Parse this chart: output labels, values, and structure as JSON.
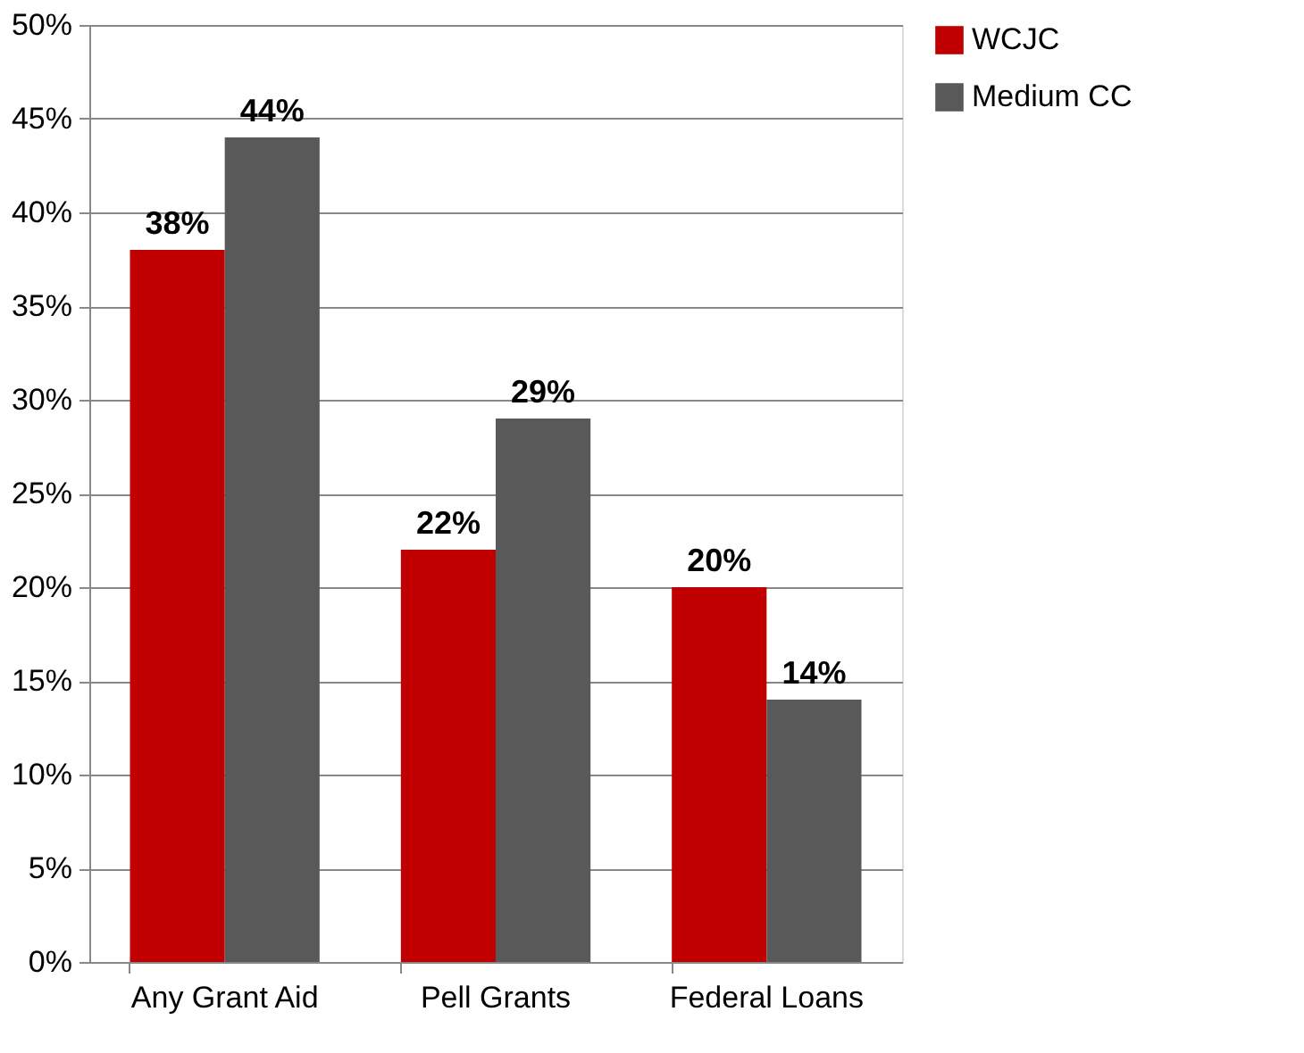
{
  "chart_data": {
    "type": "bar",
    "categories": [
      "Any Grant Aid",
      "Pell Grants",
      "Federal Loans"
    ],
    "series": [
      {
        "name": "WCJC",
        "color": "#c00000",
        "values": [
          38,
          22,
          20
        ],
        "value_labels": [
          "38%",
          "22%",
          "20%"
        ]
      },
      {
        "name": "Medium CC",
        "color": "#595959",
        "values": [
          44,
          29,
          14
        ],
        "value_labels": [
          "44%",
          "29%",
          "14%"
        ]
      }
    ],
    "ylim": [
      0,
      50
    ],
    "yticks": [
      {
        "value": 0,
        "label": "0%"
      },
      {
        "value": 5,
        "label": "5%"
      },
      {
        "value": 10,
        "label": "10%"
      },
      {
        "value": 15,
        "label": "15%"
      },
      {
        "value": 20,
        "label": "20%"
      },
      {
        "value": 25,
        "label": "25%"
      },
      {
        "value": 30,
        "label": "30%"
      },
      {
        "value": 35,
        "label": "35%"
      },
      {
        "value": 40,
        "label": "40%"
      },
      {
        "value": 45,
        "label": "45%"
      },
      {
        "value": 50,
        "label": "50%"
      }
    ],
    "grid": "y",
    "legend": "right"
  }
}
